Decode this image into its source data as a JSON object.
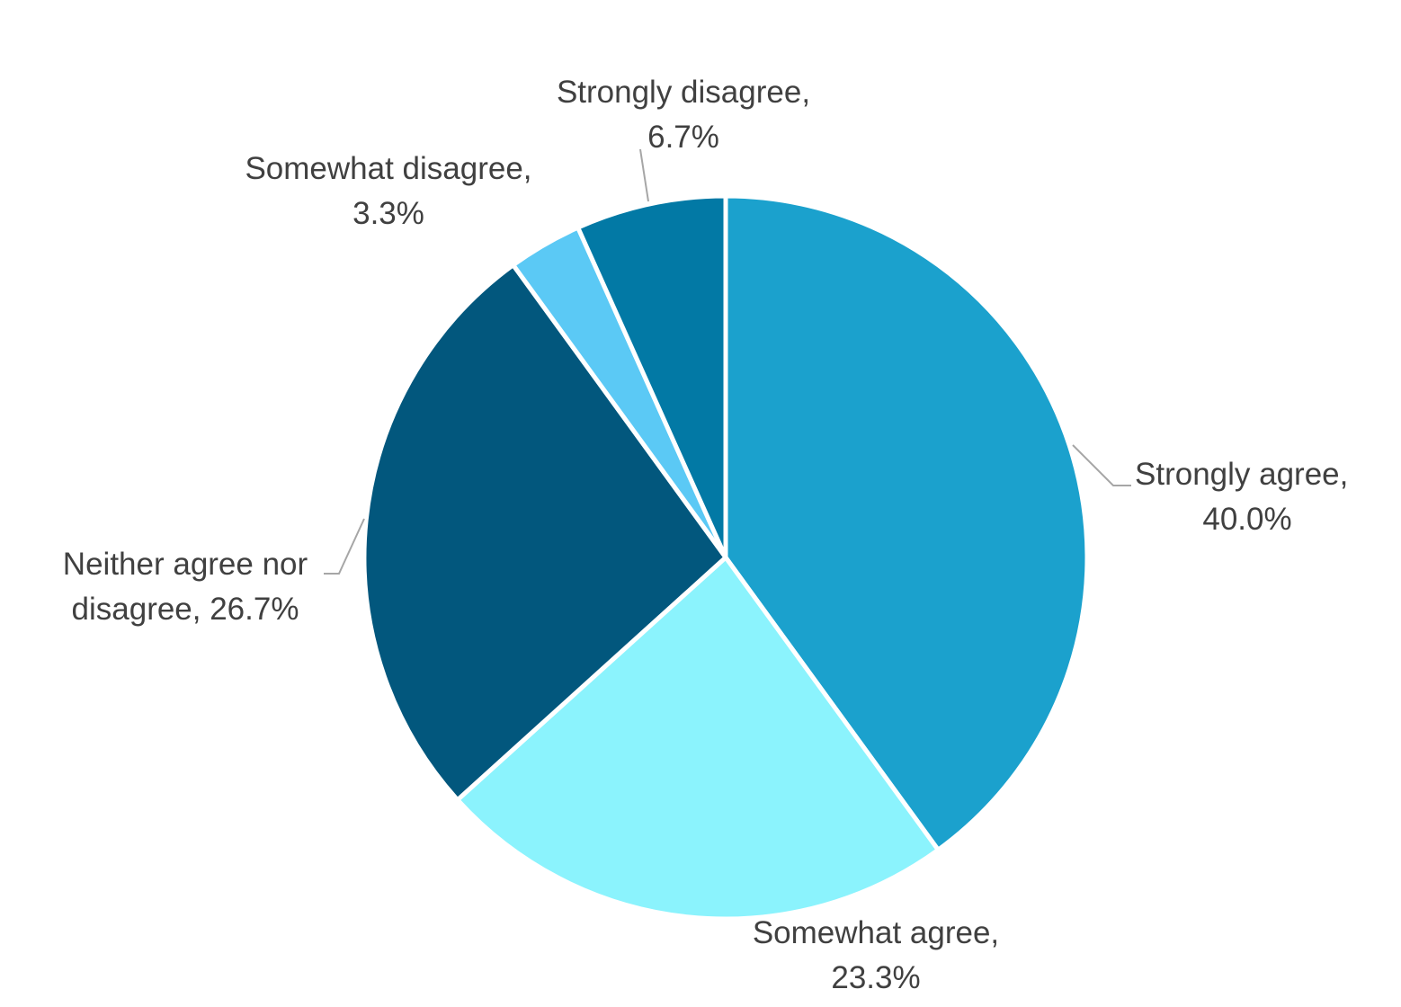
{
  "chart_data": {
    "type": "pie",
    "title": "",
    "categories": [
      "Strongly agree",
      "Somewhat agree",
      "Neither agree nor disagree",
      "Somewhat disagree",
      "Strongly disagree"
    ],
    "values": [
      40.0,
      23.3,
      26.7,
      3.3,
      6.7
    ],
    "unit": "%",
    "colors": [
      "#1ba1cd",
      "#8bf3fd",
      "#02577d",
      "#5bc9f5",
      "#0279a5"
    ],
    "start_angle_deg": 0,
    "direction": "clockwise",
    "legend": "none",
    "data_labels": [
      {
        "line1": "Strongly agree,",
        "line2": "40.0%"
      },
      {
        "line1": "Somewhat agree,",
        "line2": "23.3%"
      },
      {
        "line1": "Neither agree nor",
        "line2": "disagree, 26.7%"
      },
      {
        "line1": "Somewhat disagree,",
        "line2": "3.3%"
      },
      {
        "line1": "Strongly disagree,",
        "line2": "6.7%"
      }
    ]
  },
  "style": {
    "slice_border_color": "#ffffff",
    "leader_line_color": "#a6a6a6",
    "label_color": "#404040"
  }
}
